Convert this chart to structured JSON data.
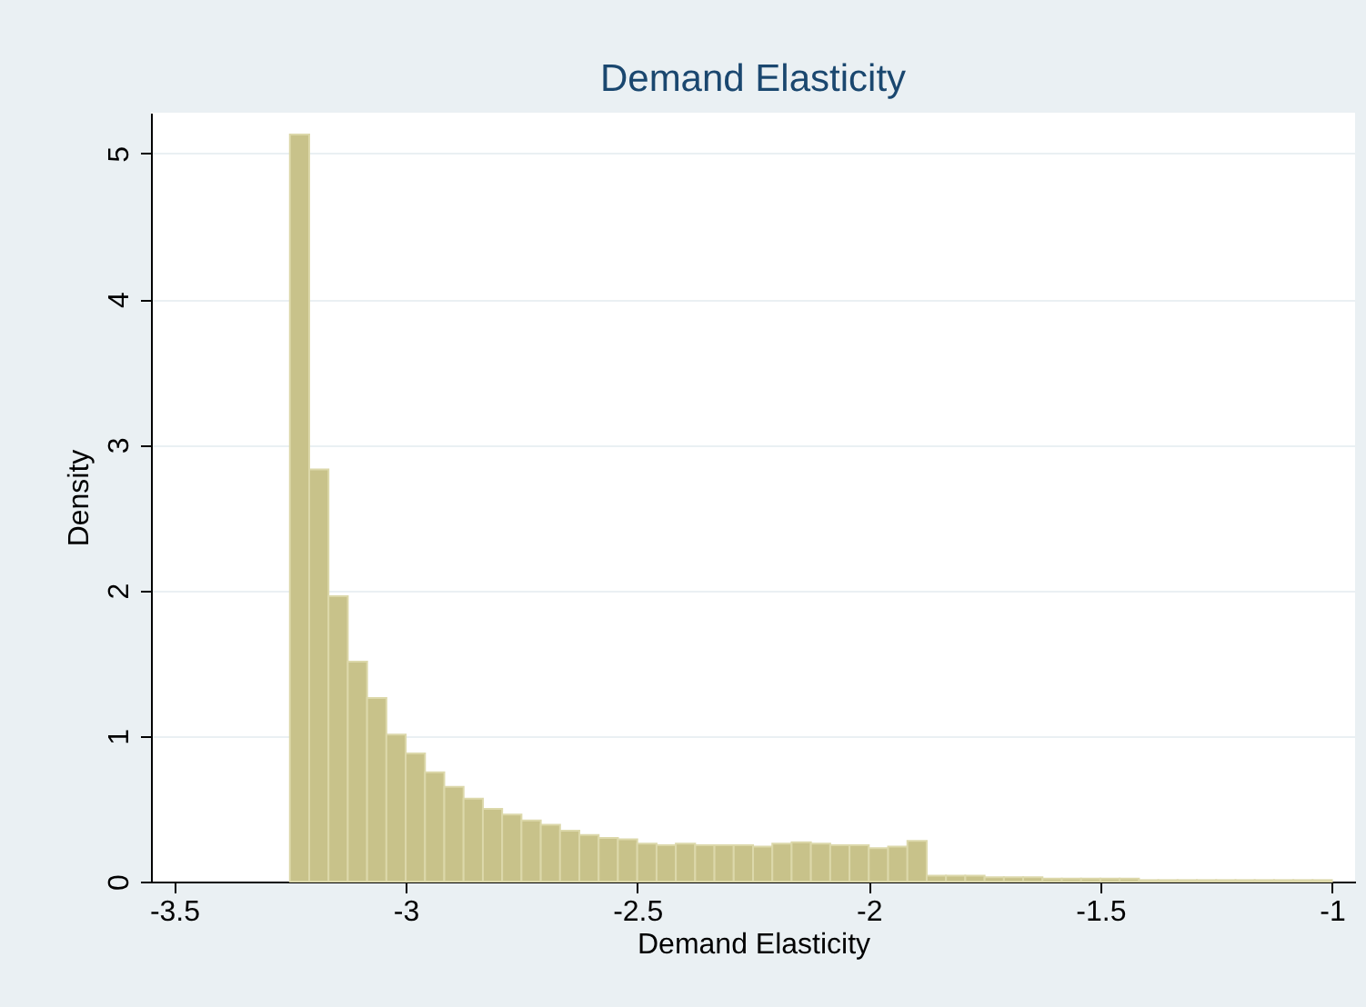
{
  "chart_data": {
    "type": "histogram",
    "title": "Demand Elasticity",
    "xlabel": "Demand Elasticity",
    "ylabel": "Density",
    "bins": [
      -3.25,
      -3.2083,
      -3.1667,
      -3.125,
      -3.0833,
      -3.0417,
      -3,
      -2.9583,
      -2.9167,
      -2.875,
      -2.8333,
      -2.7917,
      -2.75,
      -2.7083,
      -2.6667,
      -2.625,
      -2.5833,
      -2.5417,
      -2.5,
      -2.4583,
      -2.4167,
      -2.375,
      -2.3333,
      -2.2917,
      -2.25,
      -2.2083,
      -2.1667,
      -2.125,
      -2.0833,
      -2.0417,
      -2,
      -1.9583,
      -1.9167,
      -1.875,
      -1.8333,
      -1.7917,
      -1.75,
      -1.7083,
      -1.6667,
      -1.625,
      -1.5833,
      -1.5417,
      -1.5,
      -1.4583,
      -1.4167,
      -1.375,
      -1.3333,
      -1.2917,
      -1.25,
      -1.2083,
      -1.1667,
      -1.125,
      -1.0833,
      -1.0417,
      -1
    ],
    "values": [
      5.13,
      2.83,
      1.96,
      1.51,
      1.26,
      1.01,
      0.88,
      0.75,
      0.65,
      0.57,
      0.5,
      0.46,
      0.42,
      0.39,
      0.35,
      0.32,
      0.3,
      0.29,
      0.26,
      0.25,
      0.26,
      0.25,
      0.25,
      0.25,
      0.24,
      0.26,
      0.27,
      0.26,
      0.25,
      0.25,
      0.23,
      0.24,
      0.28,
      0.04,
      0.04,
      0.04,
      0.03,
      0.03,
      0.03,
      0.02,
      0.02,
      0.02,
      0.02,
      0.02,
      0.01,
      0.01,
      0.01,
      0.01,
      0.01,
      0.01,
      0.01,
      0.01,
      0.01,
      0.01
    ],
    "color": "#c8c28a",
    "xlim": [
      -3.55,
      -0.95
    ],
    "xticks": [
      -3.5,
      -3,
      -2.5,
      -2,
      -1.5,
      -1
    ],
    "ylim": [
      0,
      5.28
    ],
    "yticks": [
      0,
      1,
      2,
      3,
      4,
      5
    ],
    "grid": "y"
  }
}
